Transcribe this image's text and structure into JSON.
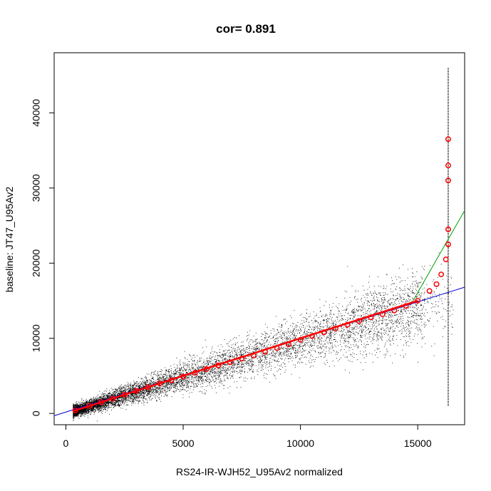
{
  "chart_data": {
    "type": "scatter",
    "title": "cor= 0.891",
    "xlabel": "RS24-IR-WJH52_U95Av2 normalized",
    "ylabel": "baseline: JT47_U95Av2",
    "xlim": [
      -500,
      17000
    ],
    "ylim": [
      -1500,
      48000
    ],
    "xticks": [
      0,
      5000,
      10000,
      15000
    ],
    "yticks": [
      0,
      10000,
      20000,
      30000,
      40000
    ],
    "grid": false,
    "colors": {
      "points": "#000000",
      "highlight": "#ff0000",
      "fit_green": "#00a000",
      "fit_blue": "#0000cc",
      "fit_red": "#ff0000"
    },
    "highlight_points": [
      {
        "x": 400,
        "y": 400
      },
      {
        "x": 1000,
        "y": 1000
      },
      {
        "x": 1500,
        "y": 1500
      },
      {
        "x": 2000,
        "y": 1950
      },
      {
        "x": 2500,
        "y": 2500
      },
      {
        "x": 3000,
        "y": 3000
      },
      {
        "x": 3500,
        "y": 3500
      },
      {
        "x": 4000,
        "y": 4000
      },
      {
        "x": 4500,
        "y": 4400
      },
      {
        "x": 5000,
        "y": 4900
      },
      {
        "x": 5500,
        "y": 5400
      },
      {
        "x": 6000,
        "y": 5900
      },
      {
        "x": 6500,
        "y": 6400
      },
      {
        "x": 7000,
        "y": 6800
      },
      {
        "x": 7500,
        "y": 7300
      },
      {
        "x": 8000,
        "y": 7700
      },
      {
        "x": 8500,
        "y": 8200
      },
      {
        "x": 9000,
        "y": 8700
      },
      {
        "x": 9500,
        "y": 9200
      },
      {
        "x": 10000,
        "y": 9800
      },
      {
        "x": 10500,
        "y": 10300
      },
      {
        "x": 11000,
        "y": 10800
      },
      {
        "x": 11500,
        "y": 11300
      },
      {
        "x": 12000,
        "y": 11800
      },
      {
        "x": 12500,
        "y": 12300
      },
      {
        "x": 13000,
        "y": 12800
      },
      {
        "x": 13500,
        "y": 13200
      },
      {
        "x": 14000,
        "y": 13700
      },
      {
        "x": 14500,
        "y": 14300
      },
      {
        "x": 15000,
        "y": 15000
      },
      {
        "x": 15500,
        "y": 16300
      },
      {
        "x": 15800,
        "y": 17200
      },
      {
        "x": 16000,
        "y": 18500
      },
      {
        "x": 16200,
        "y": 20500
      },
      {
        "x": 16300,
        "y": 22500
      },
      {
        "x": 16300,
        "y": 24500
      },
      {
        "x": 16300,
        "y": 31000
      },
      {
        "x": 16300,
        "y": 33000
      },
      {
        "x": 16300,
        "y": 36500
      }
    ],
    "fit_lines": [
      {
        "color": "green",
        "x": [
          14800,
          17000
        ],
        "y": [
          15000,
          27000
        ]
      },
      {
        "color": "blue",
        "x": [
          -500,
          17000
        ],
        "y": [
          -300,
          16800
        ]
      },
      {
        "color": "red",
        "x": [
          300,
          15000
        ],
        "y": [
          300,
          15000
        ]
      }
    ],
    "vertical_segment": {
      "x": 16300,
      "y": [
        1000,
        46000
      ]
    }
  }
}
